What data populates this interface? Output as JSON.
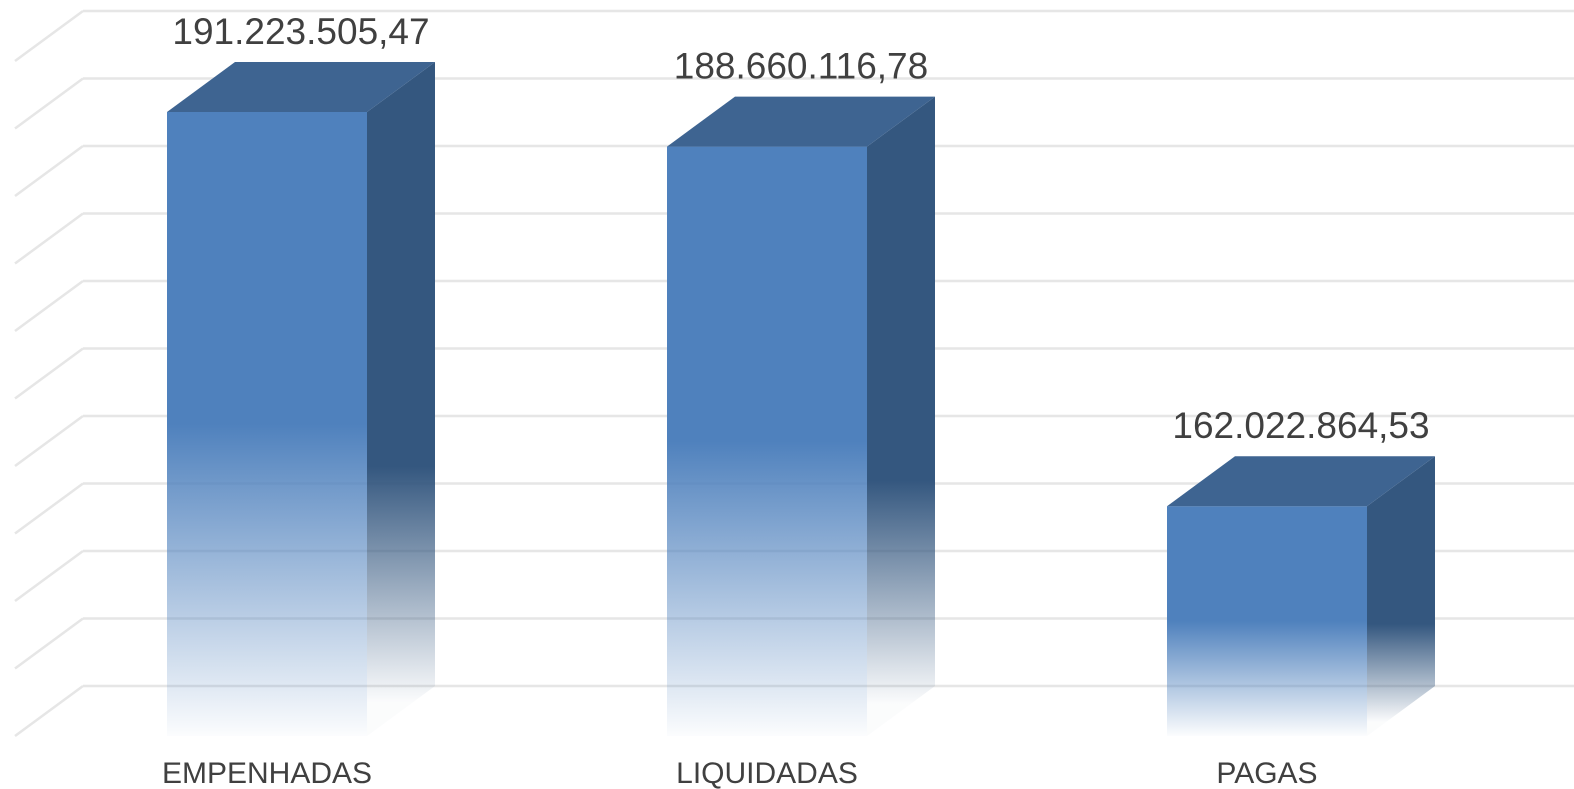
{
  "chart_data": {
    "type": "bar3d",
    "categories": [
      "EMPENHADAS",
      "LIQUIDADAS",
      "PAGAS"
    ],
    "values": [
      191223505.47,
      188660116.78,
      162022864.53
    ],
    "value_labels": [
      "191.223.505,47",
      "188.660.116,78",
      "162.022.864,53"
    ],
    "color": "#4f81bd",
    "ylim": [
      145000000,
      195000000
    ],
    "yticks": [
      145000000,
      150000000,
      155000000,
      160000000,
      165000000,
      170000000,
      175000000,
      180000000,
      185000000,
      190000000,
      195000000
    ],
    "grid": true
  }
}
